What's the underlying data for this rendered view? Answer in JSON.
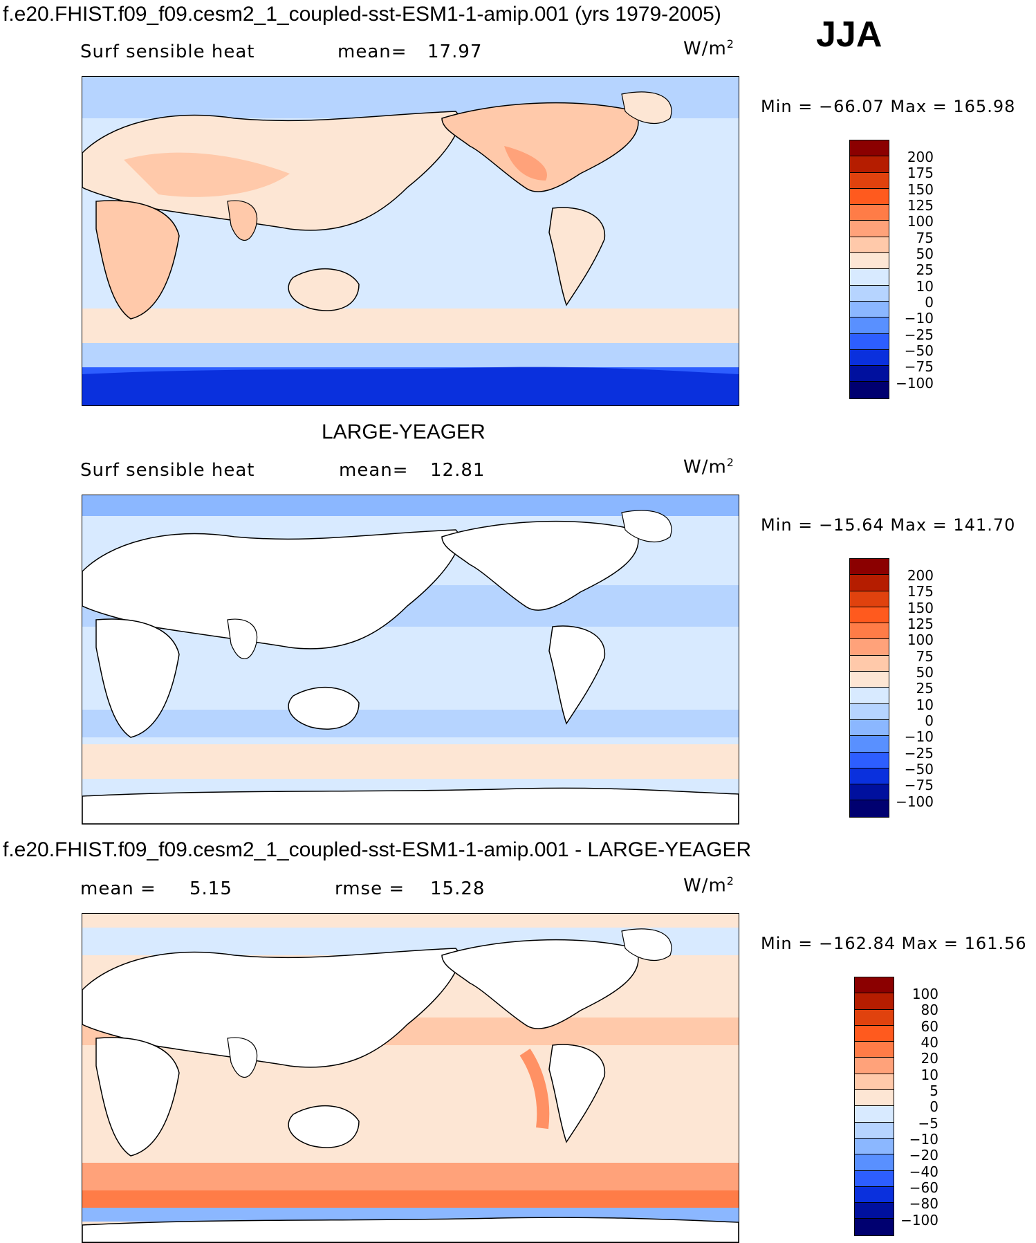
{
  "main_title": "f.e20.FHIST.f09_f09.cesm2_1_coupled-sst-ESM1-1-amip.001 (yrs 1979-2005)",
  "season": "JJA",
  "panels": [
    {
      "heading": "",
      "left_label": "Surf sensible heat",
      "mid_label": "mean=",
      "mid_value": "17.97",
      "units": "W/m",
      "units_sup": "2",
      "minmax": "Min = −66.07 Max = 165.98",
      "colorbar_labels": [
        "200",
        "175",
        "150",
        "125",
        "100",
        "75",
        "50",
        "25",
        "10",
        "0",
        "−10",
        "−25",
        "−50",
        "−75",
        "−100"
      ],
      "colorbar_colors": [
        "#8b0000",
        "#b51d00",
        "#e0420e",
        "#ff5a1e",
        "#ff7c47",
        "#ffa27a",
        "#ffc9aa",
        "#fde6d4",
        "#d8eaff",
        "#b6d4ff",
        "#8bb7ff",
        "#5990ff",
        "#2d5eff",
        "#0a30dd",
        "#00109e",
        "#000070"
      ]
    },
    {
      "heading": "LARGE-YEAGER",
      "left_label": "Surf sensible heat",
      "mid_label": "mean=",
      "mid_value": "12.81",
      "units": "W/m",
      "units_sup": "2",
      "minmax": "Min = −15.64 Max = 141.70",
      "colorbar_labels": [
        "200",
        "175",
        "150",
        "125",
        "100",
        "75",
        "50",
        "25",
        "10",
        "0",
        "−10",
        "−25",
        "−50",
        "−75",
        "−100"
      ],
      "colorbar_colors": [
        "#8b0000",
        "#b51d00",
        "#e0420e",
        "#ff5a1e",
        "#ff7c47",
        "#ffa27a",
        "#ffc9aa",
        "#fde6d4",
        "#d8eaff",
        "#b6d4ff",
        "#8bb7ff",
        "#5990ff",
        "#2d5eff",
        "#0a30dd",
        "#00109e",
        "#000070"
      ]
    },
    {
      "heading": "f.e20.FHIST.f09_f09.cesm2_1_coupled-sst-ESM1-1-amip.001 - LARGE-YEAGER",
      "left_label": "mean =",
      "left_value": "5.15",
      "mid_label": "rmse =",
      "mid_value": "15.28",
      "units": "W/m",
      "units_sup": "2",
      "minmax": "Min = −162.84 Max = 161.56",
      "colorbar_labels": [
        "100",
        "80",
        "60",
        "40",
        "20",
        "10",
        "5",
        "0",
        "−5",
        "−10",
        "−20",
        "−40",
        "−60",
        "−80",
        "−100"
      ],
      "colorbar_colors": [
        "#8b0000",
        "#b51d00",
        "#e0420e",
        "#ff5a1e",
        "#ff7c47",
        "#ffa27a",
        "#ffc9aa",
        "#fde6d4",
        "#d8eaff",
        "#b6d4ff",
        "#8bb7ff",
        "#5990ff",
        "#2d5eff",
        "#0a30dd",
        "#00109e",
        "#000070"
      ]
    }
  ],
  "map_colors": {
    "ocean_light": "#d8eaff",
    "ocean_blue": "#b6d4ff",
    "ocean_mid": "#8bb7ff",
    "warm_light": "#fde6d4",
    "warm": "#ffc9aa",
    "warm_mid": "#ffa27a",
    "warm_strong": "#ff7c47",
    "red": "#e0420e",
    "antarctic": "#2d5eff",
    "land_white": "#ffffff"
  }
}
